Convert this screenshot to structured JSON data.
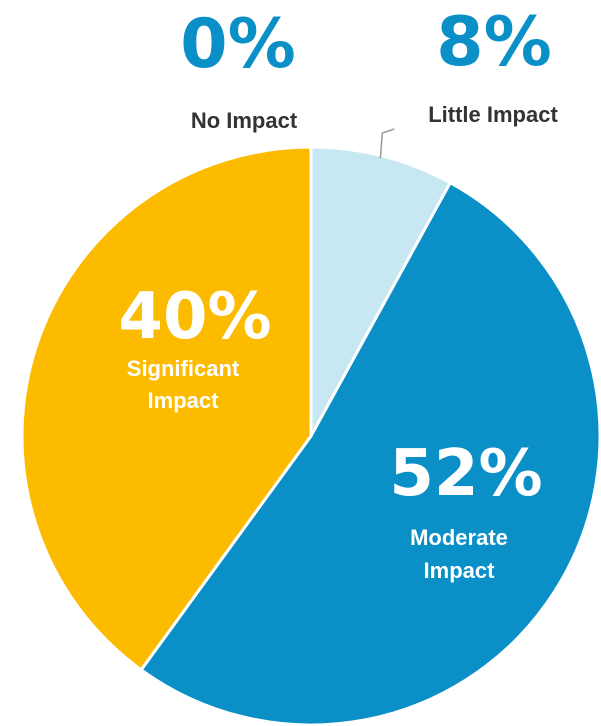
{
  "chart_data": {
    "type": "pie",
    "title": "",
    "categories": [
      "No Impact",
      "Little Impact",
      "Moderate Impact",
      "Significant Impact"
    ],
    "values": [
      0,
      8,
      52,
      40
    ],
    "slices": [
      {
        "label": "No Impact",
        "label_lines": [
          "No Impact"
        ],
        "value": 0,
        "value_label": "0%",
        "color": "#0a8fc7"
      },
      {
        "label": "Little Impact",
        "label_lines": [
          "Little Impact"
        ],
        "value": 8,
        "value_label": "8%",
        "color": "#c7e8f3"
      },
      {
        "label": "Moderate Impact",
        "label_lines": [
          "Moderate",
          "Impact"
        ],
        "value": 52,
        "value_label": "52%",
        "color": "#0a8fc7"
      },
      {
        "label": "Significant Impact",
        "label_lines": [
          "Significant",
          "Impact"
        ],
        "value": 40,
        "value_label": "40%",
        "color": "#fdbb00"
      }
    ],
    "colors": {
      "value_outside": "#0a8fc7",
      "label_outside": "#333333",
      "label_inside": "#ffffff",
      "slice_border": "#ffffff",
      "leader_line": "#999999"
    }
  }
}
